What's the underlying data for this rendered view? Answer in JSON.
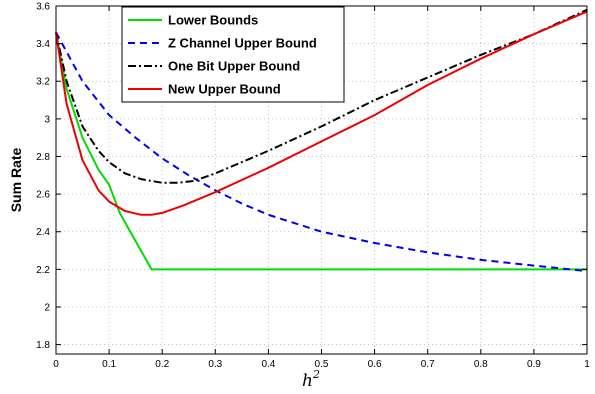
{
  "chart_data": {
    "type": "line",
    "title": "",
    "xlabel": "h",
    "xlabel_superscript": "2",
    "ylabel": "Sum Rate",
    "xlim": [
      0,
      1
    ],
    "ylim": [
      1.75,
      3.6
    ],
    "grid": true,
    "legend_position": "top",
    "x_ticks": [
      "0",
      "0.1",
      "0.2",
      "0.3",
      "0.4",
      "0.5",
      "0.6",
      "0.7",
      "0.8",
      "0.9",
      "1"
    ],
    "y_ticks": [
      "1.8",
      "2",
      "2.2",
      "2.4",
      "2.6",
      "2.8",
      "3",
      "3.2",
      "3.4",
      "3.6"
    ],
    "series": [
      {
        "name": "Lower Bounds",
        "color": "#00dd00",
        "style": "solid",
        "x": [
          0,
          0.02,
          0.05,
          0.08,
          0.1,
          0.12,
          0.15,
          0.18,
          0.3,
          0.5,
          0.7,
          0.9,
          1.0
        ],
        "y": [
          3.46,
          3.16,
          2.9,
          2.73,
          2.65,
          2.5,
          2.35,
          2.2,
          2.2,
          2.2,
          2.2,
          2.2,
          2.2
        ]
      },
      {
        "name": "Z Channel Upper Bound",
        "color": "#0000ee",
        "style": "dashed",
        "x": [
          0,
          0.05,
          0.1,
          0.15,
          0.2,
          0.25,
          0.3,
          0.35,
          0.4,
          0.5,
          0.6,
          0.7,
          0.8,
          0.9,
          1.0
        ],
        "y": [
          3.46,
          3.2,
          3.02,
          2.9,
          2.79,
          2.7,
          2.62,
          2.55,
          2.49,
          2.4,
          2.34,
          2.29,
          2.25,
          2.22,
          2.19
        ]
      },
      {
        "name": "One Bit Upper Bound",
        "color": "#000000",
        "style": "dashdot",
        "x": [
          0,
          0.02,
          0.05,
          0.08,
          0.1,
          0.13,
          0.16,
          0.2,
          0.23,
          0.26,
          0.3,
          0.4,
          0.5,
          0.6,
          0.7,
          0.8,
          0.9,
          1.0
        ],
        "y": [
          3.46,
          3.2,
          2.96,
          2.83,
          2.77,
          2.71,
          2.68,
          2.66,
          2.66,
          2.67,
          2.71,
          2.83,
          2.96,
          3.1,
          3.22,
          3.34,
          3.45,
          3.58
        ]
      },
      {
        "name": "New Upper Bound",
        "color": "#ee0000",
        "style": "solid",
        "x": [
          0,
          0.02,
          0.05,
          0.08,
          0.1,
          0.13,
          0.16,
          0.18,
          0.2,
          0.24,
          0.3,
          0.4,
          0.5,
          0.6,
          0.7,
          0.8,
          0.9,
          1.0
        ],
        "y": [
          3.46,
          3.08,
          2.78,
          2.62,
          2.56,
          2.51,
          2.49,
          2.49,
          2.5,
          2.54,
          2.61,
          2.74,
          2.88,
          3.02,
          3.18,
          3.32,
          3.45,
          3.57
        ]
      }
    ]
  }
}
